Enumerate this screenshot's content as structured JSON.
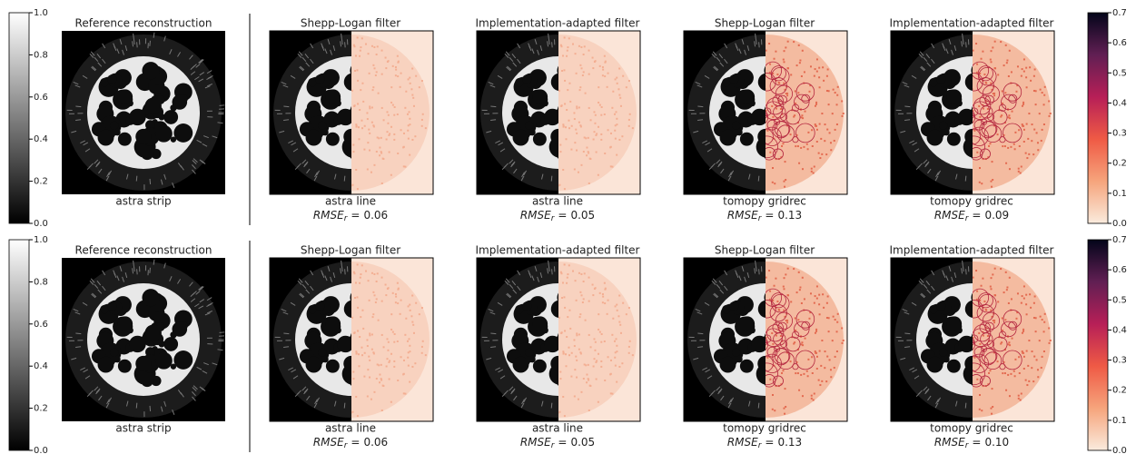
{
  "rows": [
    {
      "gray_colorbar": {
        "lim": [
          0,
          1
        ],
        "ticks": [
          {
            "value": 0,
            "label": "0.0"
          },
          {
            "value": 0.2,
            "label": "0.2"
          },
          {
            "value": 0.4,
            "label": "0.4"
          },
          {
            "value": 0.6,
            "label": "0.6"
          },
          {
            "value": 0.8,
            "label": "0.8"
          },
          {
            "value": 1,
            "label": "1.0"
          }
        ]
      },
      "reference": {
        "title": "Reference reconstruction",
        "label": "astra strip"
      },
      "panels": [
        {
          "title": "Shepp-Logan filter",
          "method": "astra line",
          "metric": "RMSE",
          "metric_sub": "r",
          "relation": "=",
          "rmse": "0.06"
        },
        {
          "title": "Implementation-adapted filter",
          "method": "astra line",
          "metric": "RMSE",
          "metric_sub": "r",
          "relation": "=",
          "rmse": "0.05"
        },
        {
          "title": "Shepp-Logan filter",
          "method": "tomopy gridrec",
          "metric": "RMSE",
          "metric_sub": "r",
          "relation": "=",
          "rmse": "0.13"
        },
        {
          "title": "Implementation-adapted filter",
          "method": "tomopy gridrec",
          "metric": "RMSE",
          "metric_sub": "r",
          "relation": "=",
          "rmse": "0.09"
        }
      ],
      "error_colorbar": {
        "lim": [
          0,
          0.7
        ],
        "ticks": [
          {
            "value": 0,
            "label": "0.0"
          },
          0.1,
          0.2,
          0.3,
          0.4,
          0.5,
          0.6,
          0.7
        ]
      }
    },
    {
      "gray_colorbar": {
        "lim": [
          0,
          1
        ],
        "ticks": [
          {
            "value": 0,
            "label": "0.0"
          },
          {
            "value": 0.2,
            "label": "0.2"
          },
          {
            "value": 0.4,
            "label": "0.4"
          },
          {
            "value": 0.6,
            "label": "0.6"
          },
          {
            "value": 0.8,
            "label": "0.8"
          },
          {
            "value": 1,
            "label": "1.0"
          }
        ]
      },
      "reference": {
        "title": "Reference reconstruction",
        "label": "astra strip"
      },
      "panels": [
        {
          "title": "Shepp-Logan filter",
          "method": "astra line",
          "metric": "RMSE",
          "metric_sub": "r",
          "relation": "=",
          "rmse": "0.06"
        },
        {
          "title": "Implementation-adapted filter",
          "method": "astra line",
          "metric": "RMSE",
          "metric_sub": "r",
          "relation": "=",
          "rmse": "0.05"
        },
        {
          "title": "Shepp-Logan filter",
          "method": "tomopy gridrec",
          "metric": "RMSE",
          "metric_sub": "r",
          "relation": "=",
          "rmse": "0.13"
        },
        {
          "title": "Implementation-adapted filter",
          "method": "tomopy gridrec",
          "metric": "RMSE",
          "metric_sub": "r",
          "relation": "=",
          "rmse": "0.10"
        }
      ],
      "error_colorbar": {
        "lim": [
          0,
          0.7
        ],
        "ticks": [
          {
            "value": 0,
            "label": "0.0"
          },
          0.1,
          0.2,
          0.3,
          0.4,
          0.5,
          0.6,
          0.7
        ]
      }
    }
  ]
}
